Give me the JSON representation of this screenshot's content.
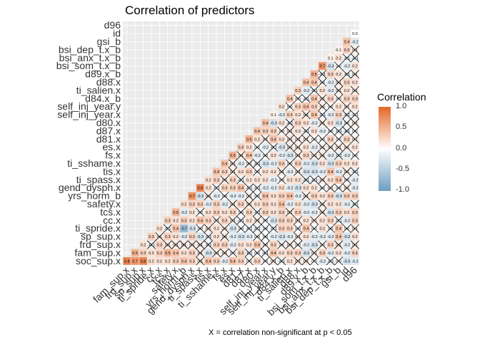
{
  "chart_data": {
    "type": "heatmap",
    "title": "Correlation of predictors",
    "legend": {
      "title": "Correlation",
      "position": "right",
      "ticks": [
        "1.0",
        "0.5",
        "0.0",
        "-0.5",
        "-1.0"
      ],
      "colors": {
        "high": "#E46726",
        "mid": "#FFFFFF",
        "low": "#6D9EC1"
      }
    },
    "footnote": "X = correlation non-significant at p < 0.05",
    "x_labels": [
      "fam_sup.x",
      "frd_sup.x",
      "sp_sup.x",
      "ti_spride.x",
      "cc.x",
      "tcs.x",
      "safety.x",
      "yrs_horm_b",
      "gend_dysph.x",
      "ti_spass.x",
      "tis.x",
      "ti_sshame.x",
      "fs.x",
      "es.x",
      "d81.x",
      "d87.x",
      "d80.x",
      "self_inj_year.x",
      "self_inj_year.y",
      "d84.x_b",
      "ti_salien.x",
      "d88.x",
      "d89.x_b",
      "bsi_som_t.x_b",
      "bsi_anx_t.x_b",
      "bsi_dep_t.x_b",
      "gsi_b",
      "id",
      "d96"
    ],
    "y_labels": [
      "soc_sup.x",
      "fam_sup.x",
      "frd_sup.x",
      "sp_sup.x",
      "ti_spride.x",
      "cc.x",
      "tcs.x",
      "safety.x",
      "yrs_horm_b",
      "gend_dysph.x",
      "ti_spass.x",
      "tis.x",
      "ti_sshame.x",
      "fs.x",
      "es.x",
      "d81.x",
      "d87.x",
      "d80.x",
      "self_inj_year.x",
      "self_inj_year.y",
      "d84.x_b",
      "ti_salien.x",
      "d88.x",
      "d89.x_b",
      "bsi_som_t.x_b",
      "bsi_anx_t.x_b",
      "bsi_dep_t.x_b",
      "gsi_b",
      "id",
      "d96"
    ],
    "diagonal_values": [
      0.8,
      0.5,
      0.2,
      0.3,
      0.2,
      0.3,
      0.5,
      0.2,
      0.7,
      0.8,
      0.2,
      0.4,
      0.4,
      0.5,
      0.3,
      0.5,
      0.4,
      0.4,
      0.1,
      0.2,
      0.4,
      0.3,
      0.4,
      0.5,
      0.7,
      0.1,
      0.1,
      0.4,
      null
    ],
    "sample_cells": [
      {
        "x": "fam_sup.x",
        "y": "soc_sup.x",
        "value": 0.8
      },
      {
        "x": "frd_sup.x",
        "y": "soc_sup.x",
        "value": 0.7
      },
      {
        "x": "sp_sup.x",
        "y": "soc_sup.x",
        "value": 0.8
      },
      {
        "x": "ti_spride.x",
        "y": "soc_sup.x",
        "value": 0.2
      },
      {
        "x": "cc.x",
        "y": "soc_sup.x",
        "value": 0.2
      },
      {
        "x": "tcs.x",
        "y": "soc_sup.x",
        "value": 0.2
      },
      {
        "x": "safety.x",
        "y": "soc_sup.x",
        "value": 0.3
      },
      {
        "x": "ti_spride.x",
        "y": "cc.x",
        "value": -0.4
      },
      {
        "x": "yrs_horm_b",
        "y": "ti_spride.x",
        "value": -0.7
      },
      {
        "x": "ti_spass.x",
        "y": "ti_sshame.x",
        "value": 0.8
      },
      {
        "x": "bsi_som_t.x_b",
        "y": "gsi_b",
        "value": 0.7
      },
      {
        "x": "id",
        "y": "d96",
        "value": 0.4
      }
    ]
  }
}
